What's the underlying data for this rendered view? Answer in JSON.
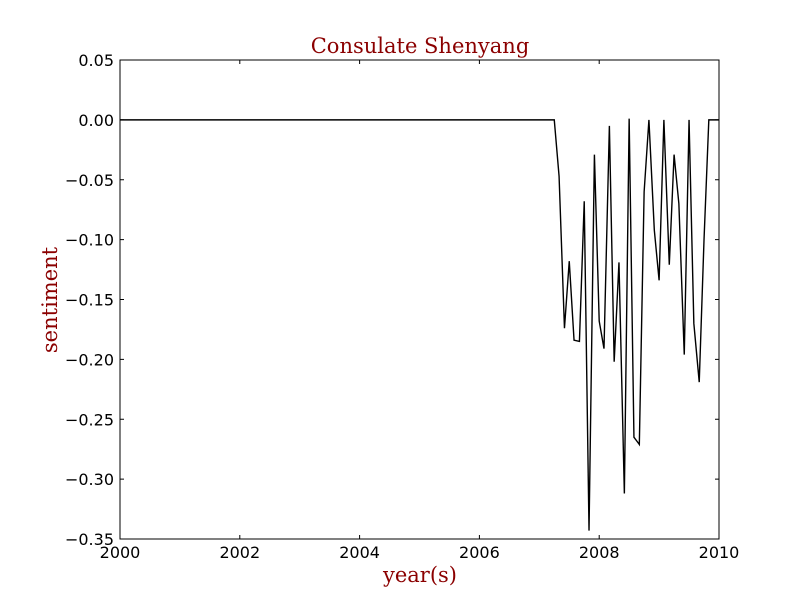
{
  "chart_data": {
    "type": "line",
    "title": "Consulate Shenyang",
    "xlabel": "year(s)",
    "ylabel": "sentiment",
    "xlim": [
      2000,
      2010
    ],
    "ylim": [
      -0.35,
      0.05
    ],
    "x_ticks": [
      2000,
      2002,
      2004,
      2006,
      2008,
      2010
    ],
    "x_tick_labels": [
      "2000",
      "2002",
      "2004",
      "2006",
      "2008",
      "2010"
    ],
    "y_ticks": [
      0.05,
      0.0,
      -0.05,
      -0.1,
      -0.15,
      -0.2,
      -0.25,
      -0.3,
      -0.35
    ],
    "y_tick_labels": [
      "0.05",
      "0.00",
      "−0.05",
      "−0.10",
      "−0.15",
      "−0.20",
      "−0.25",
      "−0.30",
      "−0.35"
    ],
    "grid": false,
    "series": [
      {
        "color": "#000000",
        "x": [
          2000.0,
          2007.25,
          2007.33,
          2007.42,
          2007.5,
          2007.58,
          2007.67,
          2007.75,
          2007.83,
          2007.92,
          2008.0,
          2008.08,
          2008.17,
          2008.25,
          2008.33,
          2008.42,
          2008.5,
          2008.58,
          2008.67,
          2008.75,
          2008.83,
          2008.92,
          2009.0,
          2009.08,
          2009.17,
          2009.25,
          2009.33,
          2009.42,
          2009.5,
          2009.58,
          2009.67,
          2009.75,
          2009.83,
          2009.92,
          2010.0
        ],
        "y": [
          0.0,
          0.0,
          -0.047,
          -0.174,
          -0.118,
          -0.184,
          -0.185,
          -0.068,
          -0.343,
          -0.029,
          -0.168,
          -0.191,
          -0.005,
          -0.202,
          -0.119,
          -0.312,
          0.001,
          -0.265,
          -0.271,
          -0.06,
          0.0,
          -0.092,
          -0.134,
          0.0,
          -0.121,
          -0.029,
          -0.07,
          -0.196,
          0.0,
          -0.17,
          -0.219,
          -0.1,
          0.0,
          0.0,
          0.0
        ]
      }
    ]
  },
  "colors": {
    "title": "#8b0000",
    "axis_label": "#8b0000",
    "line": "#000000",
    "axes": "#000000",
    "background": "#ffffff"
  }
}
